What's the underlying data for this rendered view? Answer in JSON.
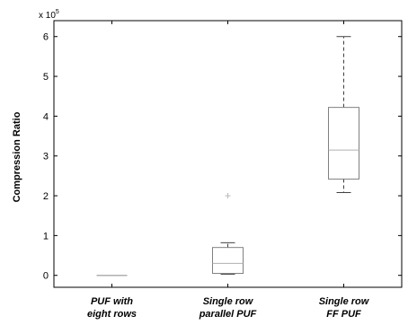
{
  "chart_data": {
    "type": "box",
    "ylabel": "Compression Ratio",
    "y_multiplier_text": "x 10",
    "y_multiplier_exp": "5",
    "ylim": [
      -0.3,
      6.4
    ],
    "yticks": [
      "0",
      "1",
      "2",
      "3",
      "4",
      "5",
      "6"
    ],
    "categories": [
      {
        "line1": "PUF with",
        "line2": "eight rows"
      },
      {
        "line1": "Single row",
        "line2": "parallel PUF"
      },
      {
        "line1": "Single row",
        "line2": "FF PUF"
      }
    ],
    "boxes": [
      {
        "min": 0.0,
        "q1": 0.0,
        "median": 0.0,
        "q3": 0.0,
        "max": 0.0,
        "outliers": []
      },
      {
        "min": 0.03,
        "q1": 0.05,
        "median": 0.3,
        "q3": 0.7,
        "max": 0.82,
        "outliers": [
          2.0
        ]
      },
      {
        "min": 2.08,
        "q1": 2.42,
        "median": 3.15,
        "q3": 4.22,
        "max": 6.0,
        "outliers": []
      }
    ],
    "colors": {
      "axis": "#000000",
      "box": "#808080",
      "whisker": "#404040",
      "median": "#b0b0b0",
      "outlier": "#c0c0c0"
    },
    "grid": false
  }
}
